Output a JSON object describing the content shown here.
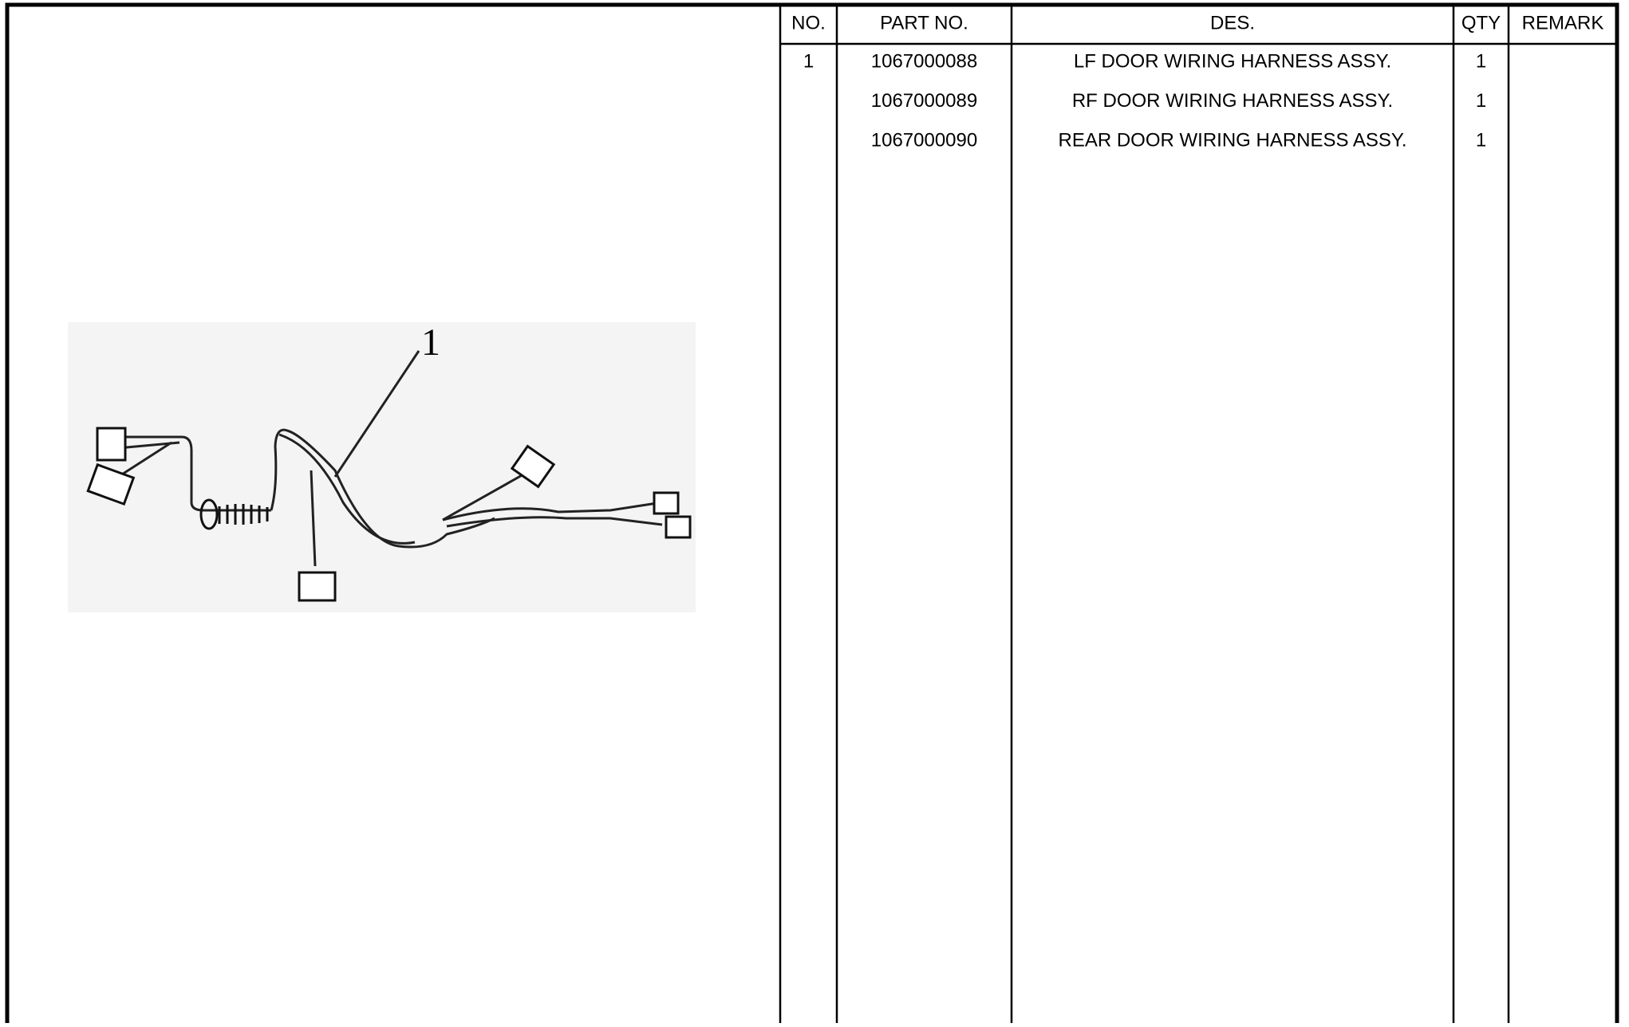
{
  "figure": {
    "callout": "1"
  },
  "table": {
    "headers": [
      "NO.",
      "PART NO.",
      "DES.",
      "QTY",
      "REMARK"
    ],
    "rows": [
      {
        "no": "1",
        "part_no": "1067000088",
        "des": "LF DOOR WIRING HARNESS ASSY.",
        "qty": "1"
      },
      {
        "part_no": "1067000089",
        "des": "RF DOOR WIRING HARNESS ASSY.",
        "qty": "1"
      },
      {
        "part_no": "1067000090",
        "des": "REAR DOOR WIRING HARNESS ASSY.",
        "qty": "1"
      }
    ]
  }
}
